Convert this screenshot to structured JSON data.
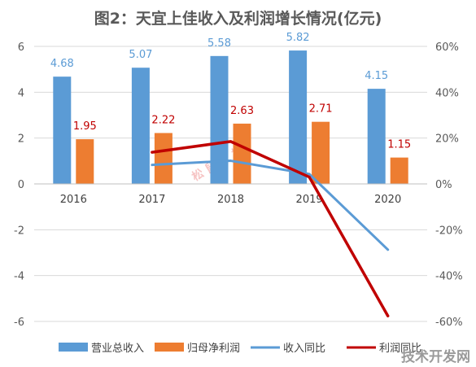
{
  "chart_data": {
    "type": "bar+line",
    "title": "图2：天宜上佳收入及利润增长情况(亿元)",
    "categories": [
      "2016",
      "2017",
      "2018",
      "2019",
      "2020"
    ],
    "y_left": {
      "min": -6,
      "max": 6,
      "step": 2,
      "ticks": [
        "6",
        "4",
        "2",
        "0",
        "-2",
        "-4",
        "-6"
      ]
    },
    "y_right": {
      "min": -60,
      "max": 60,
      "step": 20,
      "ticks": [
        "60%",
        "40%",
        "20%",
        "0%",
        "-20%",
        "-40%",
        "-60%"
      ]
    },
    "grid": true,
    "legend_position": "bottom",
    "series": [
      {
        "name": "营业总收入",
        "kind": "bar",
        "axis": "left",
        "color": "#5B9BD5",
        "label_color": "#5B9BD5",
        "values": [
          4.68,
          5.07,
          5.58,
          5.82,
          4.15
        ],
        "labels": [
          "4.68",
          "5.07",
          "5.58",
          "5.82",
          "4.15"
        ]
      },
      {
        "name": "归母净利润",
        "kind": "bar",
        "axis": "left",
        "color": "#ED7D31",
        "label_color": "#C00000",
        "values": [
          1.95,
          2.22,
          2.63,
          2.71,
          1.15
        ],
        "labels": [
          "1.95",
          "2.22",
          "2.63",
          "2.71",
          "1.15"
        ]
      },
      {
        "name": "收入同比",
        "kind": "line",
        "axis": "right",
        "color": "#5B9BD5",
        "values": [
          null,
          8.3,
          10.1,
          4.3,
          -28.7
        ]
      },
      {
        "name": "利润同比",
        "kind": "line",
        "axis": "right",
        "color": "#C00000",
        "values": [
          null,
          13.8,
          18.5,
          3.0,
          -57.6
        ]
      }
    ]
  },
  "watermark": {
    "text": "松 鼠 数 据",
    "color": "#F4B6B6"
  },
  "corner_logo": {
    "text": "技术开发网",
    "color": "#9A9A9A"
  }
}
